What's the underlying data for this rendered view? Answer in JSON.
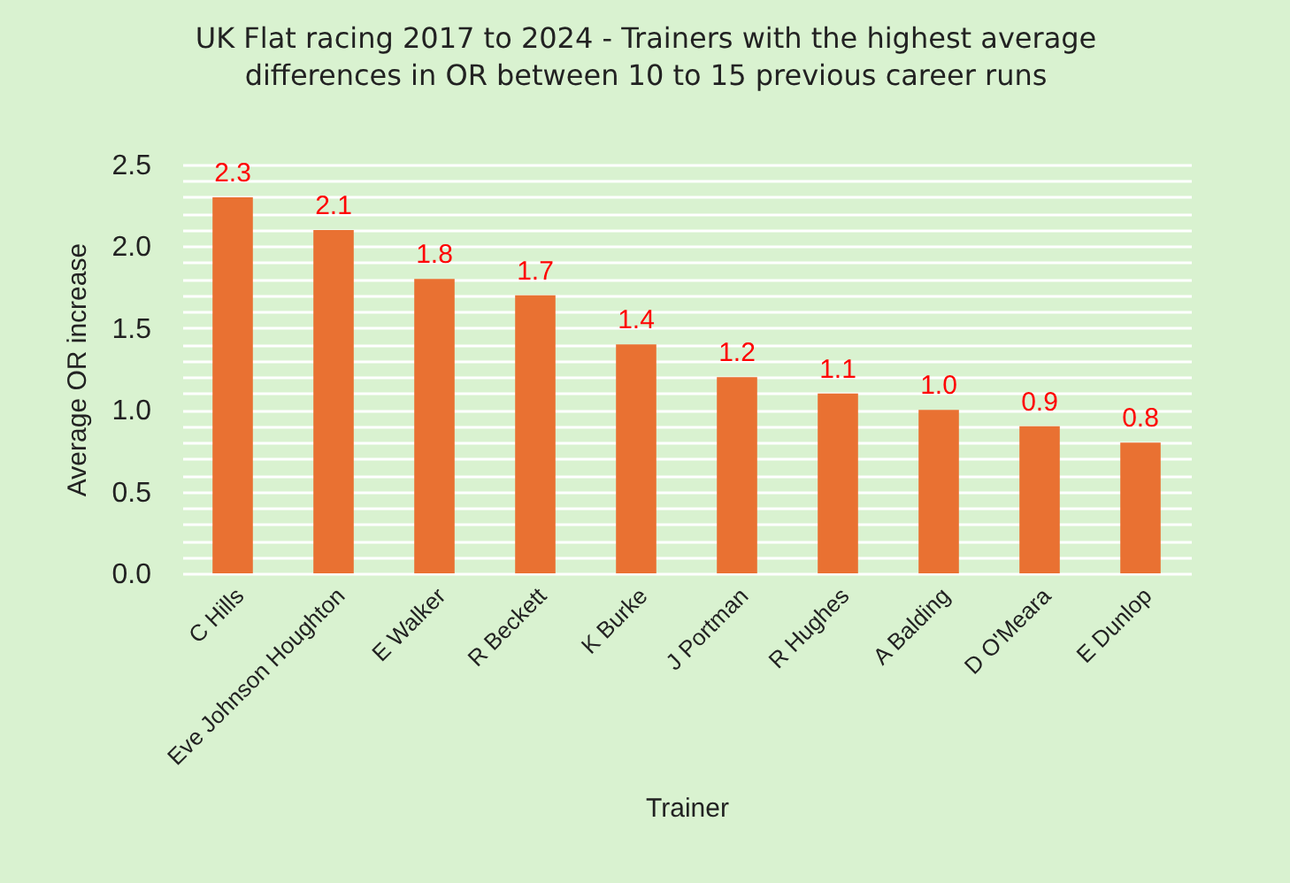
{
  "chart_data": {
    "type": "bar",
    "title": "UK Flat racing 2017 to 2024 - Trainers with the highest average\ndifferences in OR between 10 to 15 previous career runs",
    "xlabel": "Trainer",
    "ylabel": "Average OR increase",
    "categories": [
      "C Hills",
      "Eve Johnson Houghton",
      "E Walker",
      "R Beckett",
      "K Burke",
      "J Portman",
      "R Hughes",
      "A Balding",
      "D O'Meara",
      "E Dunlop"
    ],
    "values": [
      2.3,
      2.1,
      1.8,
      1.7,
      1.4,
      1.2,
      1.1,
      1.0,
      0.9,
      0.8
    ],
    "value_labels": [
      "2.3",
      "2.1",
      "1.8",
      "1.7",
      "1.4",
      "1.2",
      "1.1",
      "1.0",
      "0.9",
      "0.8"
    ],
    "color": "#e97132",
    "ylim": [
      0,
      2.5
    ],
    "yticks": [
      {
        "value": 0,
        "label": "0.0"
      },
      {
        "value": 0.1,
        "label": null
      },
      {
        "value": 0.2,
        "label": null
      },
      {
        "value": 0.3,
        "label": null
      },
      {
        "value": 0.4,
        "label": null
      },
      0.5,
      {
        "value": 0.6,
        "label": null
      },
      {
        "value": 0.7,
        "label": null
      },
      {
        "value": 0.8,
        "label": null
      },
      {
        "value": 0.9,
        "label": null
      },
      {
        "value": 1,
        "label": "1.0"
      },
      {
        "value": 1.1,
        "label": null
      },
      {
        "value": 1.2,
        "label": null
      },
      {
        "value": 1.3,
        "label": null
      },
      {
        "value": 1.4,
        "label": null
      },
      1.5,
      {
        "value": 1.6,
        "label": null
      },
      {
        "value": 1.7,
        "label": null
      },
      {
        "value": 1.8,
        "label": null
      },
      {
        "value": 1.9,
        "label": null
      },
      {
        "value": 2,
        "label": "2.0"
      },
      {
        "value": 2.1,
        "label": null
      },
      {
        "value": 2.2,
        "label": null
      },
      {
        "value": 2.3,
        "label": null
      },
      {
        "value": 2.4,
        "label": null
      },
      2.5
    ],
    "grid": "y"
  }
}
